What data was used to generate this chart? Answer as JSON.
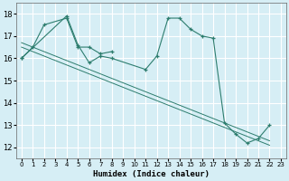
{
  "xlabel": "Humidex (Indice chaleur)",
  "xlim": [
    -0.5,
    23.5
  ],
  "ylim": [
    11.5,
    18.5
  ],
  "yticks": [
    12,
    13,
    14,
    15,
    16,
    17,
    18
  ],
  "xticks": [
    0,
    1,
    2,
    3,
    4,
    5,
    6,
    7,
    8,
    9,
    10,
    11,
    12,
    13,
    14,
    15,
    16,
    17,
    18,
    19,
    20,
    21,
    22,
    23
  ],
  "bg_color": "#d6eef5",
  "grid_color": "#ffffff",
  "line_color": "#2d7d6e",
  "series": [
    {
      "x": [
        0,
        1,
        2,
        4,
        5,
        6,
        7,
        8
      ],
      "y": [
        16.0,
        16.5,
        17.5,
        17.8,
        16.5,
        16.5,
        16.2,
        16.3
      ]
    },
    {
      "x": [
        0,
        4,
        5,
        6,
        7,
        8,
        11,
        12,
        13,
        14,
        15,
        16,
        17,
        18,
        19,
        20,
        21,
        22
      ],
      "y": [
        16.0,
        17.9,
        16.6,
        15.8,
        16.1,
        16.0,
        15.5,
        16.1,
        17.8,
        17.8,
        17.3,
        17.0,
        16.9,
        13.1,
        12.6,
        12.2,
        12.4,
        13.0
      ]
    }
  ],
  "trend_lines": [
    {
      "x": [
        0,
        22
      ],
      "y": [
        16.7,
        12.3
      ]
    },
    {
      "x": [
        0,
        22
      ],
      "y": [
        16.5,
        12.1
      ]
    }
  ]
}
